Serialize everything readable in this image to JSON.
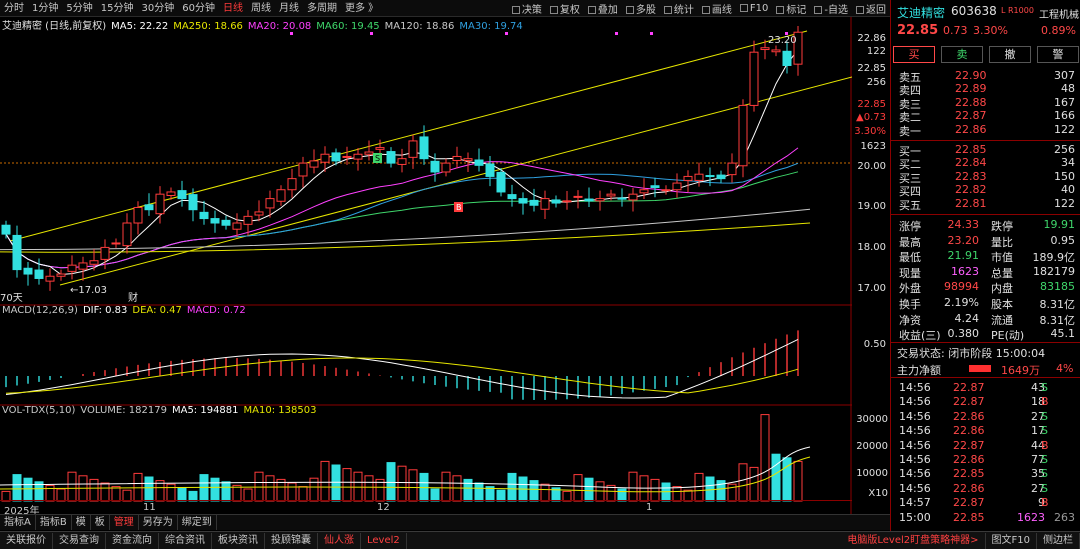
{
  "toolbar": {
    "timeframes": [
      "分时",
      "1分钟",
      "5分钟",
      "15分钟",
      "30分钟",
      "60分钟",
      "日线",
      "周线",
      "月线",
      "多周期",
      "更多"
    ],
    "active": "日线",
    "right_items": [
      "决策",
      "复权",
      "叠加",
      "多股",
      "统计",
      "画线",
      "F10",
      "标记",
      "-自选",
      "返回"
    ]
  },
  "chart": {
    "ma_title": "艾迪精密 (日线,前复权)",
    "ma_items": [
      {
        "label": "MA5: 22.22",
        "color": "#ffffff"
      },
      {
        "label": "MA250: 18.66",
        "color": "#e6e600"
      },
      {
        "label": "MA20: 20.08",
        "color": "#ff40ff"
      },
      {
        "label": "MA60: 19.45",
        "color": "#3fd66b"
      },
      {
        "label": "MA120: 18.86",
        "color": "#c8c8c8"
      },
      {
        "label": "MA30: 19.74",
        "color": "#2fa0e0"
      }
    ],
    "price_axis": [
      "22.86",
      "122",
      "22.85",
      "256",
      "22.85",
      "0.73",
      "3.30%",
      "1623",
      "20.00",
      "19.00",
      "18.00",
      "17.00"
    ],
    "annotations": {
      "high": "23.20",
      "low": "17.03",
      "days": "70天",
      "fin": "财",
      "sig_s": "S",
      "sig_b": "B"
    },
    "macd_items": [
      {
        "label": "MACD(12,26,9)",
        "color": "#c8c8c8"
      },
      {
        "label": "DIF: 0.83",
        "color": "#ffffff"
      },
      {
        "label": "DEA: 0.47",
        "color": "#e6e600"
      },
      {
        "label": "MACD: 0.72",
        "color": "#ff40ff"
      }
    ],
    "macd_axis": [
      "0.50"
    ],
    "vol_items": [
      {
        "label": "VOL-TDX(5,10)",
        "color": "#c8c8c8"
      },
      {
        "label": "VOLUME: 182179",
        "color": "#c8c8c8"
      },
      {
        "label": "MA5: 194881",
        "color": "#ffffff"
      },
      {
        "label": "MA10: 138503",
        "color": "#e6e600"
      }
    ],
    "vol_axis": [
      "30000",
      "20000",
      "10000",
      "X10"
    ],
    "dates": [
      "2025年",
      "11",
      "12",
      "1"
    ]
  },
  "bottom_tabs": [
    "指标A",
    "指标B",
    "模",
    "板",
    "管理",
    "另存为",
    "绑定到"
  ],
  "footer": [
    "关联报价",
    "交易查询",
    "资金流向",
    "综合资讯",
    "板块资讯",
    "投顾锦囊",
    "仙人涨",
    "Level2",
    "电脑版Level2盯盘策略神器>",
    "图文F10",
    "侧边栏"
  ],
  "quote": {
    "name": "艾迪精密",
    "code": "603638",
    "tag": "L R1000",
    "industry": "工程机械",
    "price": "22.85",
    "change": "0.73",
    "pct": "3.30%",
    "sector_pct": "0.89%",
    "buttons": [
      "买",
      "卖",
      "撤",
      "警"
    ],
    "asks": [
      {
        "label": "卖五",
        "price": "22.90",
        "vol": "307"
      },
      {
        "label": "卖四",
        "price": "22.89",
        "vol": "48"
      },
      {
        "label": "卖三",
        "price": "22.88",
        "vol": "167"
      },
      {
        "label": "卖二",
        "price": "22.87",
        "vol": "166"
      },
      {
        "label": "卖一",
        "price": "22.86",
        "vol": "122"
      }
    ],
    "bids": [
      {
        "label": "买一",
        "price": "22.85",
        "vol": "256"
      },
      {
        "label": "买二",
        "price": "22.84",
        "vol": "34"
      },
      {
        "label": "买三",
        "price": "22.83",
        "vol": "150"
      },
      {
        "label": "买四",
        "price": "22.82",
        "vol": "40"
      },
      {
        "label": "买五",
        "price": "22.81",
        "vol": "122"
      }
    ],
    "stats": [
      [
        "涨停",
        "24.33",
        "r",
        "跌停",
        "19.91",
        "g"
      ],
      [
        "最高",
        "23.20",
        "r",
        "量比",
        "0.95",
        "w"
      ],
      [
        "最低",
        "21.91",
        "g",
        "市值",
        "189.9亿",
        "w"
      ],
      [
        "现量",
        "1623",
        "p",
        "总量",
        "182179",
        "w"
      ],
      [
        "外盘",
        "98994",
        "r",
        "内盘",
        "83185",
        "g"
      ],
      [
        "换手",
        "2.19%",
        "w",
        "股本",
        "8.31亿",
        "w"
      ],
      [
        "净资",
        "4.24",
        "w",
        "流通",
        "8.31亿",
        "w"
      ],
      [
        "收益(三)",
        "0.380",
        "w",
        "PE(动)",
        "45.1",
        "w"
      ]
    ],
    "status": "交易状态: 闭市阶段 15:00:04",
    "netflow": {
      "label": "主力净额",
      "value": "1649万",
      "pct": "4%"
    },
    "ticks": [
      [
        "14:56",
        "22.87",
        "43",
        "S",
        "g"
      ],
      [
        "14:56",
        "22.87",
        "18",
        "B",
        "r"
      ],
      [
        "14:56",
        "22.86",
        "27",
        "S",
        "g"
      ],
      [
        "14:56",
        "22.86",
        "17",
        "S",
        "g"
      ],
      [
        "14:56",
        "22.87",
        "44",
        "B",
        "r"
      ],
      [
        "14:56",
        "22.86",
        "77",
        "S",
        "g"
      ],
      [
        "14:56",
        "22.85",
        "35",
        "S",
        "g"
      ],
      [
        "14:56",
        "22.86",
        "27",
        "S",
        "g"
      ],
      [
        "14:57",
        "22.87",
        "9",
        "B",
        "r"
      ],
      [
        "15:00",
        "22.85",
        "1623",
        "",
        "w"
      ]
    ],
    "tick_last_extra": "263"
  }
}
